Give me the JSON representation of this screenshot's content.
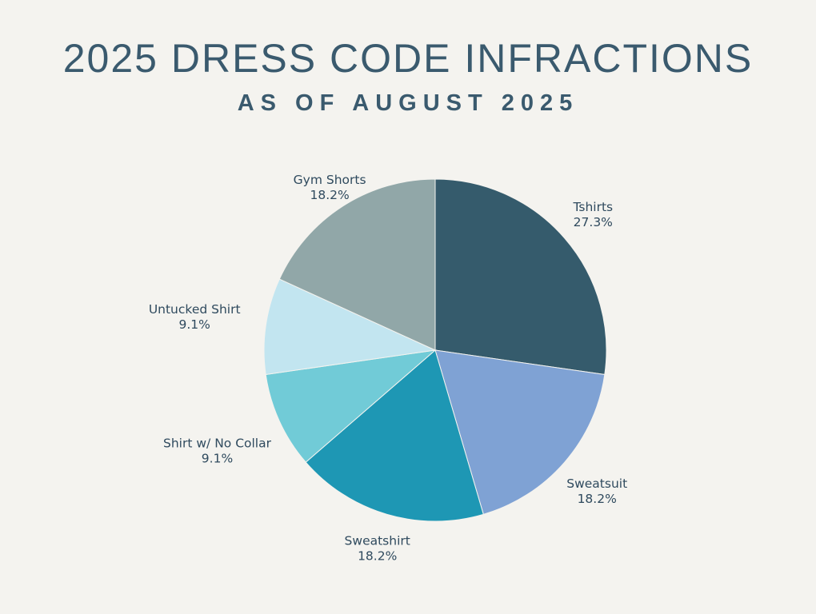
{
  "chart_data": {
    "type": "pie",
    "title": "2025 DRESS CODE INFRACTIONS",
    "subtitle": "AS OF AUGUST 2025",
    "slices": [
      {
        "name": "Tshirts",
        "value": 27.3,
        "label": "27.3%",
        "color": "#355b6c"
      },
      {
        "name": "Sweatsuit",
        "value": 18.2,
        "label": "18.2%",
        "color": "#7fa2d4"
      },
      {
        "name": "Sweatshirt",
        "value": 18.2,
        "label": "18.2%",
        "color": "#1e97b4"
      },
      {
        "name": "Shirt w/ No Collar",
        "value": 9.1,
        "label": "9.1%",
        "color": "#71cbd7"
      },
      {
        "name": "Untucked Shirt",
        "value": 9.1,
        "label": "9.1%",
        "color": "#c2e5f0"
      },
      {
        "name": "Gym Shorts",
        "value": 18.2,
        "label": "18.2%",
        "color": "#91a7a8"
      }
    ],
    "start_angle": "12 o'clock",
    "direction": "clockwise",
    "legend": "none"
  }
}
